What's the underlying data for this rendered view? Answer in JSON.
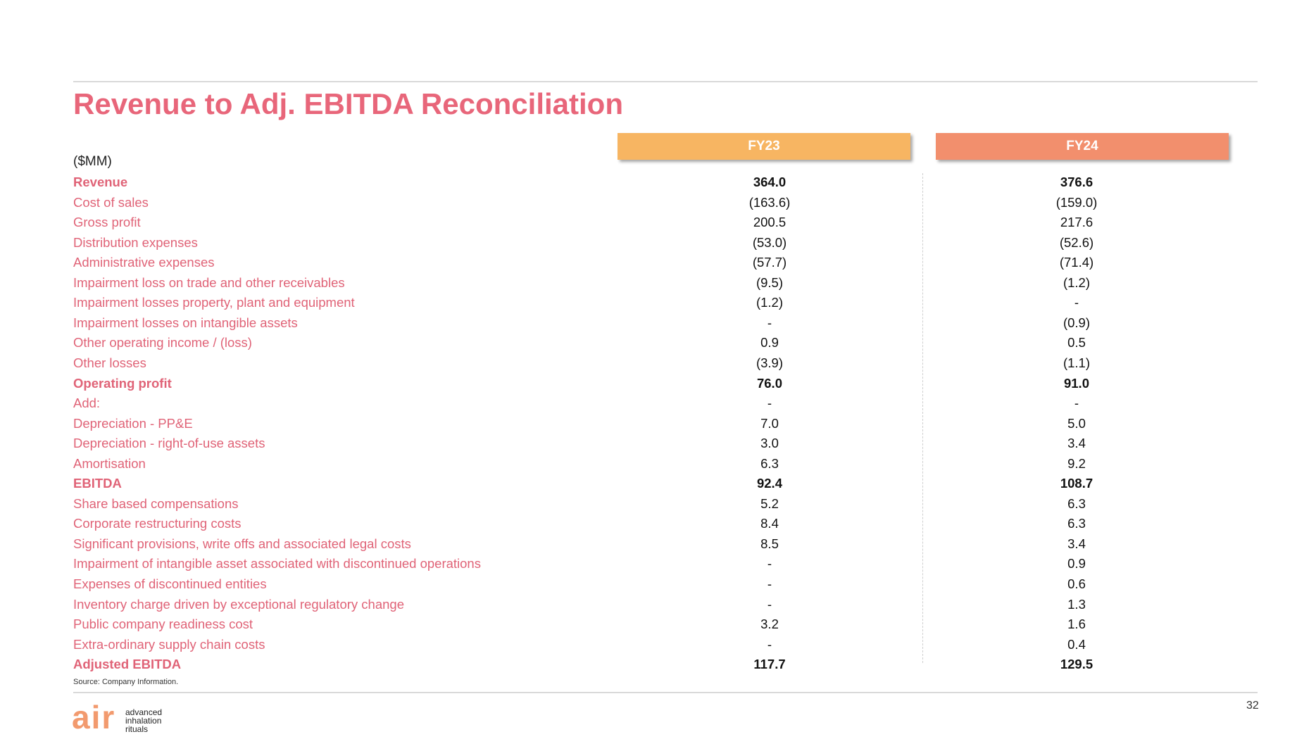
{
  "header": {
    "title": "Revenue to Adj. EBITDA Reconciliation"
  },
  "table": {
    "unit": "($MM)",
    "columns": [
      "FY23",
      "FY24"
    ],
    "rows": [
      {
        "label": "Revenue",
        "values": [
          "364.0",
          "376.6"
        ],
        "bold": true
      },
      {
        "label": "Cost of sales",
        "values": [
          "(163.6)",
          "(159.0)"
        ]
      },
      {
        "label": "Gross profit",
        "values": [
          "200.5",
          "217.6"
        ]
      },
      {
        "label": "Distribution expenses",
        "values": [
          "(53.0)",
          "(52.6)"
        ]
      },
      {
        "label": "Administrative expenses",
        "values": [
          "(57.7)",
          "(71.4)"
        ]
      },
      {
        "label": "Impairment loss on trade and other receivables",
        "values": [
          "(9.5)",
          "(1.2)"
        ]
      },
      {
        "label": "Impairment losses property, plant and equipment",
        "values": [
          "(1.2)",
          "-"
        ]
      },
      {
        "label": "Impairment losses on intangible assets",
        "values": [
          "-",
          "(0.9)"
        ]
      },
      {
        "label": "Other operating income / (loss)",
        "values": [
          "0.9",
          "0.5"
        ]
      },
      {
        "label": "Other losses",
        "values": [
          "(3.9)",
          "(1.1)"
        ]
      },
      {
        "label": "Operating profit",
        "values": [
          "76.0",
          "91.0"
        ],
        "bold": true
      },
      {
        "label": "Add:",
        "values": [
          "-",
          "-"
        ]
      },
      {
        "label": "Depreciation - PP&E",
        "values": [
          "7.0",
          "5.0"
        ]
      },
      {
        "label": "Depreciation - right-of-use assets",
        "values": [
          "3.0",
          "3.4"
        ]
      },
      {
        "label": "Amortisation",
        "values": [
          "6.3",
          "9.2"
        ]
      },
      {
        "label": "EBITDA",
        "values": [
          "92.4",
          "108.7"
        ],
        "bold": true
      },
      {
        "label": "Share based compensations",
        "values": [
          "5.2",
          "6.3"
        ]
      },
      {
        "label": "Corporate restructuring costs",
        "values": [
          "8.4",
          "6.3"
        ]
      },
      {
        "label": "Significant provisions, write offs and associated legal costs",
        "values": [
          "8.5",
          "3.4"
        ]
      },
      {
        "label": "Impairment of intangible asset associated with discontinued operations",
        "values": [
          "-",
          "0.9"
        ]
      },
      {
        "label": "Expenses of discontinued entities",
        "values": [
          "-",
          "0.6"
        ]
      },
      {
        "label": "Inventory charge driven by exceptional regulatory change",
        "values": [
          "-",
          "1.3"
        ]
      },
      {
        "label": "Public company readiness cost",
        "values": [
          "3.2",
          "1.6"
        ]
      },
      {
        "label": "Extra-ordinary supply chain costs",
        "values": [
          "-",
          "0.4"
        ]
      },
      {
        "label": "Adjusted EBITDA",
        "values": [
          "117.7",
          "129.5"
        ],
        "bold": true
      }
    ]
  },
  "footer": {
    "source": "Source: Company Information.",
    "page_number": "32",
    "logo": {
      "mark": "air",
      "lines": [
        "advanced",
        "inhalation",
        "rituals"
      ]
    }
  }
}
